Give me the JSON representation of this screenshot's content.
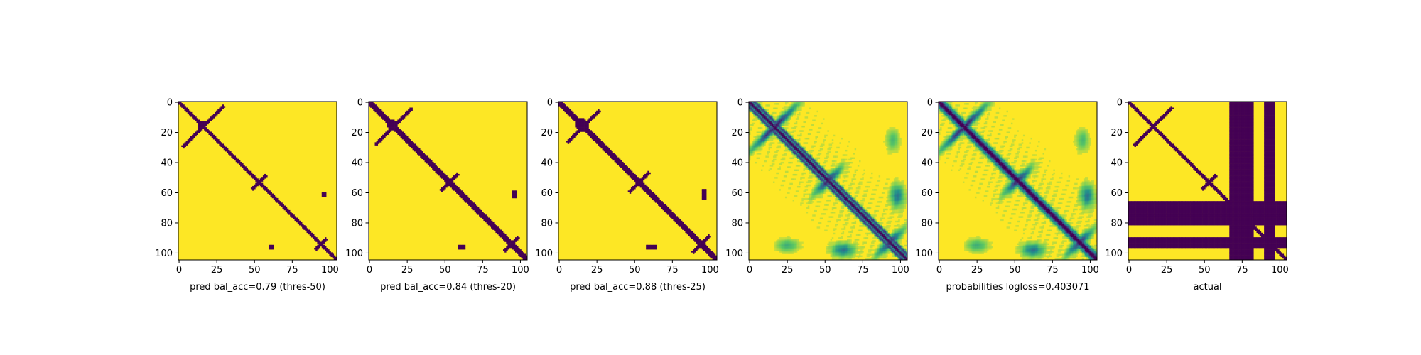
{
  "chart_data": [
    {
      "type": "heatmap",
      "subtype": "binary",
      "title": "",
      "xlabel": "pred bal_acc=0.79 (thres-50)",
      "ylabel": "",
      "xlim": [
        0,
        105
      ],
      "ylim": [
        105,
        0
      ],
      "xticks": [
        0,
        25,
        50,
        75,
        100
      ],
      "yticks": [
        0,
        20,
        40,
        60,
        80,
        100
      ],
      "grid": false,
      "colormap": "viridis",
      "colors": {
        "low": "#440154",
        "high": "#fde725"
      }
    },
    {
      "type": "heatmap",
      "subtype": "binary",
      "title": "",
      "xlabel": "pred bal_acc=0.84 (thres-20)",
      "ylabel": "",
      "xlim": [
        0,
        105
      ],
      "ylim": [
        105,
        0
      ],
      "xticks": [
        0,
        25,
        50,
        75,
        100
      ],
      "yticks": [
        0,
        20,
        40,
        60,
        80,
        100
      ],
      "grid": false,
      "colormap": "viridis",
      "colors": {
        "low": "#440154",
        "high": "#fde725"
      }
    },
    {
      "type": "heatmap",
      "subtype": "binary",
      "title": "",
      "xlabel": "pred bal_acc=0.88 (thres-25)",
      "ylabel": "",
      "xlim": [
        0,
        105
      ],
      "ylim": [
        105,
        0
      ],
      "xticks": [
        0,
        25,
        50,
        75,
        100
      ],
      "yticks": [
        0,
        20,
        40,
        60,
        80,
        100
      ],
      "grid": false,
      "colormap": "viridis",
      "colors": {
        "low": "#440154",
        "high": "#fde725"
      }
    },
    {
      "type": "heatmap",
      "subtype": "continuous",
      "title": "",
      "xlabel": "",
      "ylabel": "",
      "xlim": [
        0,
        105
      ],
      "ylim": [
        105,
        0
      ],
      "xticks": [
        0,
        25,
        50,
        75,
        100
      ],
      "yticks": [
        0,
        20,
        40,
        60,
        80,
        100
      ],
      "grid": false,
      "colormap": "viridis",
      "colors": {
        "low": "#440154",
        "high": "#fde725"
      }
    },
    {
      "type": "heatmap",
      "subtype": "continuous",
      "title": "",
      "xlabel": "probabilities logloss=0.403071",
      "ylabel": "",
      "xlim": [
        0,
        105
      ],
      "ylim": [
        105,
        0
      ],
      "xticks": [
        0,
        25,
        50,
        75,
        100
      ],
      "yticks": [
        0,
        20,
        40,
        60,
        80,
        100
      ],
      "grid": false,
      "colormap": "viridis",
      "colors": {
        "low": "#440154",
        "high": "#fde725"
      }
    },
    {
      "type": "heatmap",
      "subtype": "binary",
      "title": "",
      "xlabel": "actual",
      "ylabel": "",
      "xlim": [
        0,
        105
      ],
      "ylim": [
        105,
        0
      ],
      "xticks": [
        0,
        25,
        50,
        75,
        100
      ],
      "yticks": [
        0,
        20,
        40,
        60,
        80,
        100
      ],
      "grid": false,
      "colormap": "viridis",
      "colors": {
        "low": "#440154",
        "high": "#fde725"
      }
    }
  ]
}
